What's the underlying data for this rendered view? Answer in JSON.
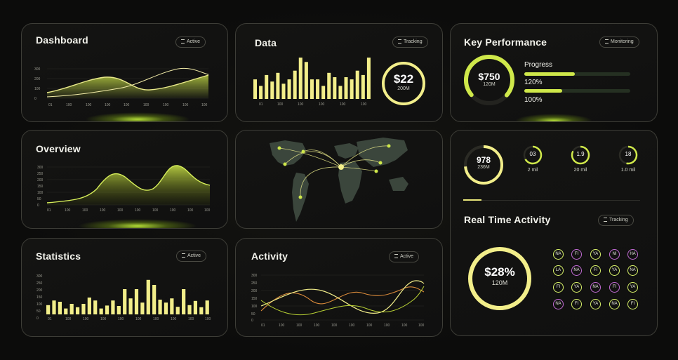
{
  "colors": {
    "accent": "#f2ee8a",
    "lime": "#cfe84a",
    "orange": "#d98a3a",
    "purple": "#c16bd4"
  },
  "dashboard": {
    "title": "Dashboard",
    "badge": "Active",
    "y_ticks": [
      "300",
      "200",
      "100",
      "0"
    ],
    "x_ticks": [
      "01",
      "100",
      "100",
      "100",
      "100",
      "100",
      "100",
      "100",
      "100",
      "100"
    ]
  },
  "data_card": {
    "title": "Data",
    "badge": "Tracking",
    "x_ticks": [
      "01",
      "100",
      "100",
      "100",
      "100",
      "100",
      "100"
    ],
    "ring_value": "$22",
    "ring_sub": "200M"
  },
  "key_performance": {
    "title": "Key Performance",
    "badge": "Monitoring",
    "ring_value": "$750",
    "ring_sub": "120M",
    "progress_label": "Progress",
    "bar1_label": "120%",
    "bar2_label": "100%"
  },
  "overview": {
    "title": "Overview",
    "y_ticks": [
      "300",
      "250",
      "200",
      "150",
      "100",
      "50",
      "0"
    ],
    "x_ticks": [
      "01",
      "100",
      "100",
      "100",
      "100",
      "100",
      "100",
      "100",
      "100",
      "100"
    ]
  },
  "stats_ring": {
    "main_value": "978",
    "main_sub": "236M",
    "small": [
      {
        "value": "03",
        "label": "2 mil"
      },
      {
        "value": "1.9",
        "label": "20 mil"
      },
      {
        "value": "18",
        "label": "1.0 mil"
      }
    ]
  },
  "statistics": {
    "title": "Statistics",
    "badge": "Active",
    "y_ticks": [
      "300",
      "250",
      "200",
      "150",
      "100",
      "50",
      "0"
    ],
    "x_ticks": [
      "01",
      "100",
      "100",
      "100",
      "100",
      "100",
      "100",
      "100",
      "100",
      "100"
    ]
  },
  "activity": {
    "title": "Activity",
    "badge": "Active",
    "y_ticks": [
      "300",
      "250",
      "200",
      "150",
      "100",
      "50",
      "0"
    ],
    "x_ticks": [
      "01",
      "100",
      "100",
      "100",
      "100",
      "100",
      "100",
      "100",
      "100",
      "100"
    ]
  },
  "real_time": {
    "title": "Real Time Activity",
    "badge": "Tracking",
    "ring_value": "$28%",
    "ring_sub": "120M",
    "avatars": [
      [
        "NA",
        "FI",
        "YA",
        "NI",
        "HA"
      ],
      [
        "LA",
        "NA",
        "FI",
        "YA",
        "NA"
      ],
      [
        "FI",
        "YA",
        "NA",
        "FI",
        "YA"
      ],
      [
        "NA",
        "FI",
        "YA",
        "NA",
        "FI"
      ]
    ]
  },
  "chart_data": [
    {
      "type": "bar",
      "title": "Data",
      "values": [
        0.45,
        0.3,
        0.55,
        0.4,
        0.6,
        0.35,
        0.45,
        0.65,
        0.95,
        0.85,
        0.45,
        0.45,
        0.3,
        0.6,
        0.5,
        0.3,
        0.5,
        0.45,
        0.65,
        0.55,
        0.95
      ]
    },
    {
      "type": "bar",
      "title": "Statistics",
      "values": [
        0.22,
        0.33,
        0.3,
        0.14,
        0.25,
        0.17,
        0.25,
        0.4,
        0.33,
        0.14,
        0.21,
        0.33,
        0.2,
        0.6,
        0.38,
        0.6,
        0.28,
        0.82,
        0.7,
        0.35,
        0.28,
        0.38,
        0.18,
        0.6,
        0.22,
        0.32,
        0.17,
        0.33
      ]
    }
  ]
}
